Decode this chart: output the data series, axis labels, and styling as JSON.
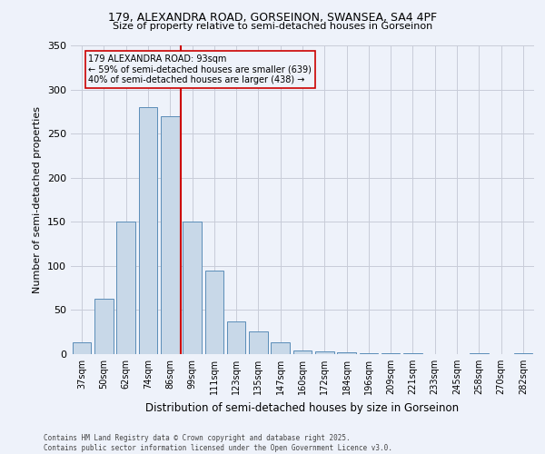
{
  "title_line1": "179, ALEXANDRA ROAD, GORSEINON, SWANSEA, SA4 4PF",
  "title_line2": "Size of property relative to semi-detached houses in Gorseinon",
  "xlabel": "Distribution of semi-detached houses by size in Gorseinon",
  "ylabel": "Number of semi-detached properties",
  "footer_line1": "Contains HM Land Registry data © Crown copyright and database right 2025.",
  "footer_line2": "Contains public sector information licensed under the Open Government Licence v3.0.",
  "annotation_line1": "179 ALEXANDRA ROAD: 93sqm",
  "annotation_line2": "← 59% of semi-detached houses are smaller (639)",
  "annotation_line3": "40% of semi-detached houses are larger (438) →",
  "categories": [
    "37sqm",
    "50sqm",
    "62sqm",
    "74sqm",
    "86sqm",
    "99sqm",
    "111sqm",
    "123sqm",
    "135sqm",
    "147sqm",
    "160sqm",
    "172sqm",
    "184sqm",
    "196sqm",
    "209sqm",
    "221sqm",
    "233sqm",
    "245sqm",
    "258sqm",
    "270sqm",
    "282sqm"
  ],
  "values": [
    13,
    63,
    150,
    280,
    270,
    150,
    95,
    37,
    26,
    13,
    4,
    3,
    2,
    1,
    1,
    1,
    0,
    0,
    1,
    0,
    1
  ],
  "bar_color": "#c8d8e8",
  "bar_edge_color": "#5b8db8",
  "vline_pos": 4.5,
  "vline_color": "#cc0000",
  "annotation_box_color": "#cc0000",
  "background_color": "#eef2fa",
  "grid_color": "#c8ccd8",
  "ylim": [
    0,
    350
  ],
  "yticks": [
    0,
    50,
    100,
    150,
    200,
    250,
    300,
    350
  ]
}
